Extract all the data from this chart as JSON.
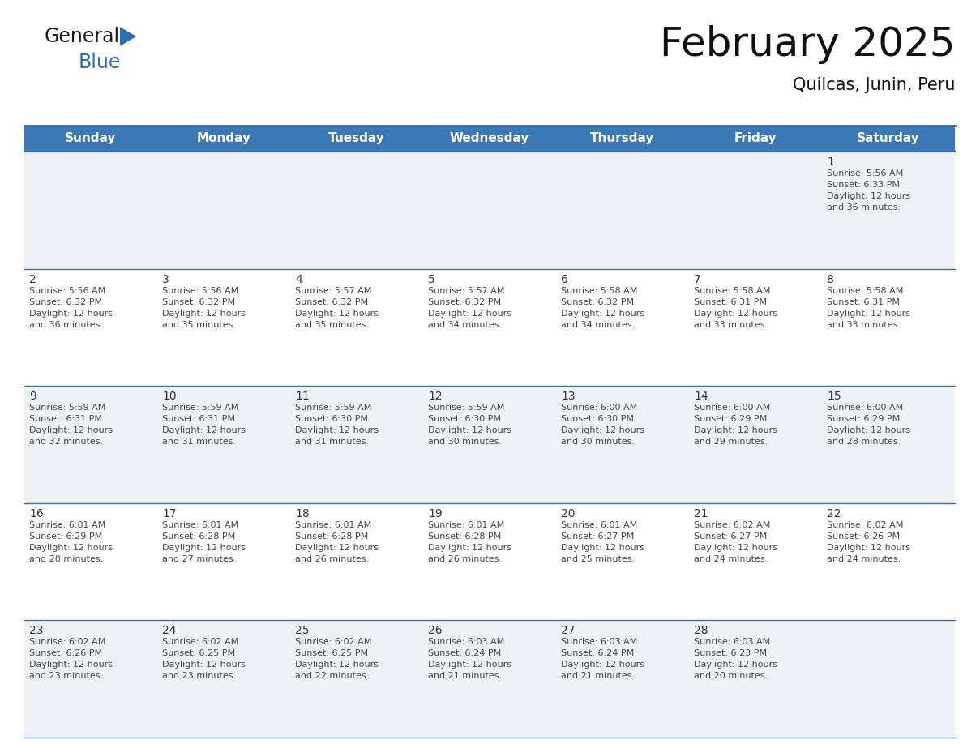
{
  "title": "February 2025",
  "subtitle": "Quilcas, Junin, Peru",
  "days_of_week": [
    "Sunday",
    "Monday",
    "Tuesday",
    "Wednesday",
    "Thursday",
    "Friday",
    "Saturday"
  ],
  "header_bg": "#3b78b5",
  "header_text": "#ffffff",
  "row_bg_even": "#eef2f7",
  "row_bg_odd": "#ffffff",
  "border_color": "#3b6ea5",
  "text_color": "#333333",
  "day_num_color": "#333333",
  "info_text_color": "#444444",
  "calendar_data": [
    {
      "day": 1,
      "col": 6,
      "row": 0,
      "sunrise": "5:56 AM",
      "sunset": "6:33 PM",
      "daylight_h": "12 hours",
      "daylight_m": "36 minutes."
    },
    {
      "day": 2,
      "col": 0,
      "row": 1,
      "sunrise": "5:56 AM",
      "sunset": "6:32 PM",
      "daylight_h": "12 hours",
      "daylight_m": "36 minutes."
    },
    {
      "day": 3,
      "col": 1,
      "row": 1,
      "sunrise": "5:56 AM",
      "sunset": "6:32 PM",
      "daylight_h": "12 hours",
      "daylight_m": "35 minutes."
    },
    {
      "day": 4,
      "col": 2,
      "row": 1,
      "sunrise": "5:57 AM",
      "sunset": "6:32 PM",
      "daylight_h": "12 hours",
      "daylight_m": "35 minutes."
    },
    {
      "day": 5,
      "col": 3,
      "row": 1,
      "sunrise": "5:57 AM",
      "sunset": "6:32 PM",
      "daylight_h": "12 hours",
      "daylight_m": "34 minutes."
    },
    {
      "day": 6,
      "col": 4,
      "row": 1,
      "sunrise": "5:58 AM",
      "sunset": "6:32 PM",
      "daylight_h": "12 hours",
      "daylight_m": "34 minutes."
    },
    {
      "day": 7,
      "col": 5,
      "row": 1,
      "sunrise": "5:58 AM",
      "sunset": "6:31 PM",
      "daylight_h": "12 hours",
      "daylight_m": "33 minutes."
    },
    {
      "day": 8,
      "col": 6,
      "row": 1,
      "sunrise": "5:58 AM",
      "sunset": "6:31 PM",
      "daylight_h": "12 hours",
      "daylight_m": "33 minutes."
    },
    {
      "day": 9,
      "col": 0,
      "row": 2,
      "sunrise": "5:59 AM",
      "sunset": "6:31 PM",
      "daylight_h": "12 hours",
      "daylight_m": "32 minutes."
    },
    {
      "day": 10,
      "col": 1,
      "row": 2,
      "sunrise": "5:59 AM",
      "sunset": "6:31 PM",
      "daylight_h": "12 hours",
      "daylight_m": "31 minutes."
    },
    {
      "day": 11,
      "col": 2,
      "row": 2,
      "sunrise": "5:59 AM",
      "sunset": "6:30 PM",
      "daylight_h": "12 hours",
      "daylight_m": "31 minutes."
    },
    {
      "day": 12,
      "col": 3,
      "row": 2,
      "sunrise": "5:59 AM",
      "sunset": "6:30 PM",
      "daylight_h": "12 hours",
      "daylight_m": "30 minutes."
    },
    {
      "day": 13,
      "col": 4,
      "row": 2,
      "sunrise": "6:00 AM",
      "sunset": "6:30 PM",
      "daylight_h": "12 hours",
      "daylight_m": "30 minutes."
    },
    {
      "day": 14,
      "col": 5,
      "row": 2,
      "sunrise": "6:00 AM",
      "sunset": "6:29 PM",
      "daylight_h": "12 hours",
      "daylight_m": "29 minutes."
    },
    {
      "day": 15,
      "col": 6,
      "row": 2,
      "sunrise": "6:00 AM",
      "sunset": "6:29 PM",
      "daylight_h": "12 hours",
      "daylight_m": "28 minutes."
    },
    {
      "day": 16,
      "col": 0,
      "row": 3,
      "sunrise": "6:01 AM",
      "sunset": "6:29 PM",
      "daylight_h": "12 hours",
      "daylight_m": "28 minutes."
    },
    {
      "day": 17,
      "col": 1,
      "row": 3,
      "sunrise": "6:01 AM",
      "sunset": "6:28 PM",
      "daylight_h": "12 hours",
      "daylight_m": "27 minutes."
    },
    {
      "day": 18,
      "col": 2,
      "row": 3,
      "sunrise": "6:01 AM",
      "sunset": "6:28 PM",
      "daylight_h": "12 hours",
      "daylight_m": "26 minutes."
    },
    {
      "day": 19,
      "col": 3,
      "row": 3,
      "sunrise": "6:01 AM",
      "sunset": "6:28 PM",
      "daylight_h": "12 hours",
      "daylight_m": "26 minutes."
    },
    {
      "day": 20,
      "col": 4,
      "row": 3,
      "sunrise": "6:01 AM",
      "sunset": "6:27 PM",
      "daylight_h": "12 hours",
      "daylight_m": "25 minutes."
    },
    {
      "day": 21,
      "col": 5,
      "row": 3,
      "sunrise": "6:02 AM",
      "sunset": "6:27 PM",
      "daylight_h": "12 hours",
      "daylight_m": "24 minutes."
    },
    {
      "day": 22,
      "col": 6,
      "row": 3,
      "sunrise": "6:02 AM",
      "sunset": "6:26 PM",
      "daylight_h": "12 hours",
      "daylight_m": "24 minutes."
    },
    {
      "day": 23,
      "col": 0,
      "row": 4,
      "sunrise": "6:02 AM",
      "sunset": "6:26 PM",
      "daylight_h": "12 hours",
      "daylight_m": "23 minutes."
    },
    {
      "day": 24,
      "col": 1,
      "row": 4,
      "sunrise": "6:02 AM",
      "sunset": "6:25 PM",
      "daylight_h": "12 hours",
      "daylight_m": "23 minutes."
    },
    {
      "day": 25,
      "col": 2,
      "row": 4,
      "sunrise": "6:02 AM",
      "sunset": "6:25 PM",
      "daylight_h": "12 hours",
      "daylight_m": "22 minutes."
    },
    {
      "day": 26,
      "col": 3,
      "row": 4,
      "sunrise": "6:03 AM",
      "sunset": "6:24 PM",
      "daylight_h": "12 hours",
      "daylight_m": "21 minutes."
    },
    {
      "day": 27,
      "col": 4,
      "row": 4,
      "sunrise": "6:03 AM",
      "sunset": "6:24 PM",
      "daylight_h": "12 hours",
      "daylight_m": "21 minutes."
    },
    {
      "day": 28,
      "col": 5,
      "row": 4,
      "sunrise": "6:03 AM",
      "sunset": "6:23 PM",
      "daylight_h": "12 hours",
      "daylight_m": "20 minutes."
    }
  ],
  "num_rows": 5,
  "num_cols": 7,
  "logo_general_color": "#1a1a1a",
  "logo_blue_color": "#2e6db4",
  "logo_triangle_color": "#2e6db4",
  "title_fontsize": 36,
  "subtitle_fontsize": 15,
  "header_fontsize": 11,
  "day_num_fontsize": 10,
  "info_fontsize": 8
}
